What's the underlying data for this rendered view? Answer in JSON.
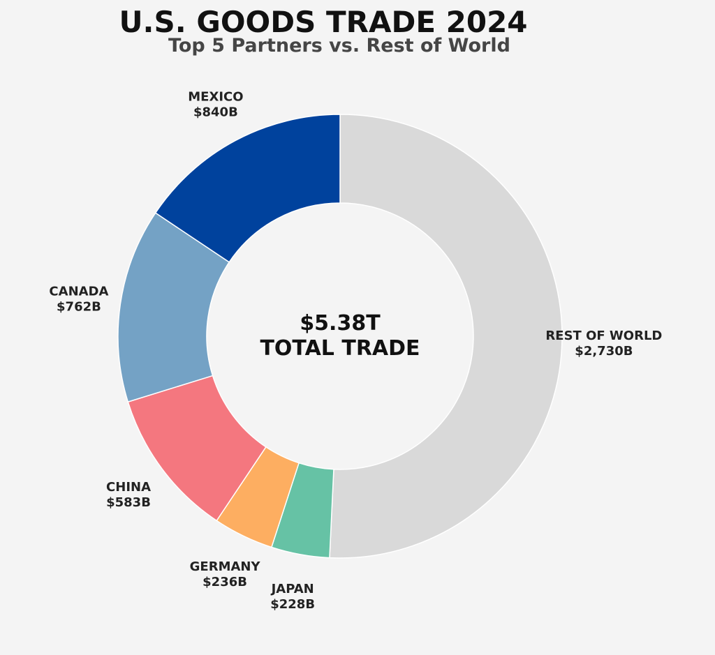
{
  "chart_data": {
    "type": "pie",
    "title": "U.S. GOODS TRADE 2024",
    "subtitle": "Top 5 Partners vs. Rest of World",
    "center_value": "$5.38T",
    "center_label": "TOTAL TRADE",
    "slices": [
      {
        "name": "REST OF WORLD",
        "value": 2730,
        "display": "$2,730B",
        "color": "#d9d9d9"
      },
      {
        "name": "JAPAN",
        "value": 228,
        "display": "$228B",
        "color": "#66c2a5"
      },
      {
        "name": "GERMANY",
        "value": 236,
        "display": "$236B",
        "color": "#fdae61"
      },
      {
        "name": "CHINA",
        "value": 583,
        "display": "$583B",
        "color": "#f4777f"
      },
      {
        "name": "CANADA",
        "value": 762,
        "display": "$762B",
        "color": "#74a2c5"
      },
      {
        "name": "MEXICO",
        "value": 840,
        "display": "$840B",
        "color": "#00429d"
      }
    ],
    "start_angle": "12 o'clock",
    "direction": "clockwise",
    "donut": true
  }
}
